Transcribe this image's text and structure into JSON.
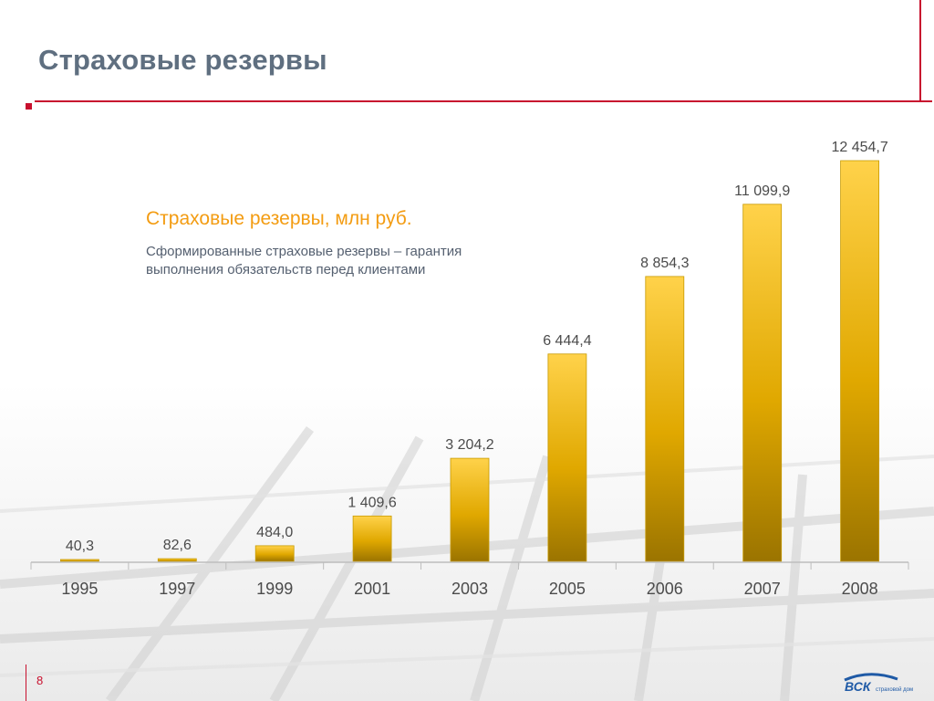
{
  "slide": {
    "title": "Страховые резервы",
    "subtitle": "Страховые резервы, млн руб.",
    "description": "Сформированные страховые резервы – гарантия выполнения обязательств перед клиентами",
    "page_number": "8"
  },
  "logo": {
    "text": "ВСК",
    "tagline": "страховой дом"
  },
  "colors": {
    "accent": "#c8102e",
    "title": "#5f6f80",
    "subtitle": "#f39c12",
    "bar_top": "#ffd24a",
    "bar_bottom": "#9b7400"
  },
  "chart_data": {
    "type": "bar",
    "categories": [
      "1995",
      "1997",
      "1999",
      "2001",
      "2003",
      "2005",
      "2006",
      "2007",
      "2008"
    ],
    "values": [
      40.3,
      82.6,
      484.0,
      1409.6,
      3204.2,
      6444.4,
      8854.3,
      11099.9,
      12454.7
    ],
    "value_labels": [
      "40,3",
      "82,6",
      "484,0",
      "1 409,6",
      "3 204,2",
      "6 444,4",
      "8 854,3",
      "11 099,9",
      "12 454,7"
    ],
    "ylim": [
      0,
      12454.7
    ],
    "grid": false,
    "title": "",
    "xlabel": "",
    "ylabel": ""
  }
}
